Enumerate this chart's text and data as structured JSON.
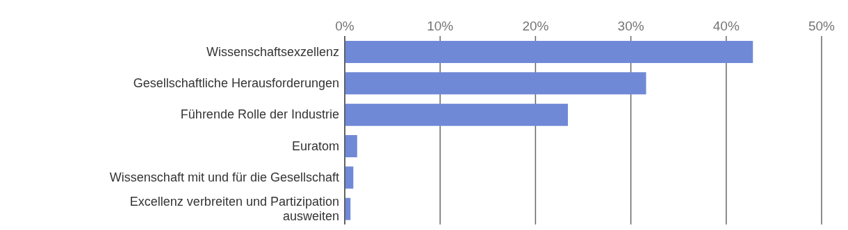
{
  "chart_data": {
    "type": "bar",
    "orientation": "horizontal",
    "categories": [
      "Wissenschaftsexzellenz",
      "Gesellschaftliche Herausforderungen",
      "Führende Rolle der Industrie",
      "Euratom",
      "Wissenschaft mit und für die Gesellschaft",
      "Excellenz verbreiten und Partizipation ausweiten"
    ],
    "values": [
      42.8,
      31.6,
      23.4,
      1.3,
      0.9,
      0.6
    ],
    "color": "#7089d7",
    "xlim": [
      0,
      50
    ],
    "xticks": [
      {
        "value": 0,
        "label": "0%"
      },
      {
        "value": 10,
        "label": "10%"
      },
      {
        "value": 20,
        "label": "20%"
      },
      {
        "value": 30,
        "label": "30%"
      },
      {
        "value": 40,
        "label": "40%"
      },
      {
        "value": 50,
        "label": "50%"
      }
    ],
    "grid": "x"
  }
}
